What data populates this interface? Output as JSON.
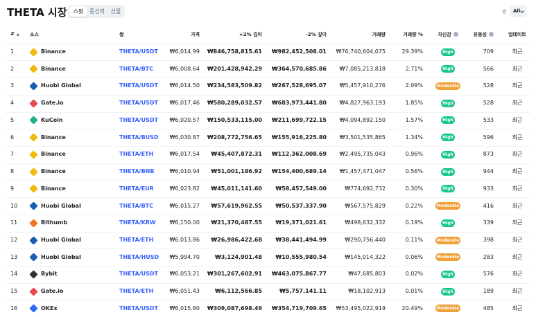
{
  "header": {
    "title": "THETA 시장",
    "tabs": [
      "스팟",
      "종신의",
      "선물"
    ],
    "active_tab": 0,
    "filter_label": "쌍",
    "filter_value": "All"
  },
  "table": {
    "columns": [
      "#",
      "소스",
      "쌍",
      "가격",
      "+2% 깊이",
      "-2% 깊이",
      "거래량",
      "거래량 %",
      "자신감",
      "유동성",
      "업데이트"
    ],
    "sort_indicator": "▲",
    "rows": [
      {
        "rank": 1,
        "exchange": "Binance",
        "logo_color": "#f0b90b",
        "pair": "THETA/USDT",
        "price": "₩6,014.99",
        "depth_plus": "₩846,758,815.61",
        "depth_minus": "₩982,452,508.01",
        "volume": "₩76,740,604,075",
        "volume_pct": "29.39%",
        "confidence": "High",
        "confidence_color": "#16c784",
        "liquidity": 709,
        "updated": "최근"
      },
      {
        "rank": 2,
        "exchange": "Binance",
        "logo_color": "#f0b90b",
        "pair": "THETA/BTC",
        "price": "₩6,008.64",
        "depth_plus": "₩201,428,942.29",
        "depth_minus": "₩364,570,685.86",
        "volume": "₩7,085,213,818",
        "volume_pct": "2.71%",
        "confidence": "High",
        "confidence_color": "#16c784",
        "liquidity": 566,
        "updated": "최근"
      },
      {
        "rank": 3,
        "exchange": "Huobi Global",
        "logo_color": "#1c5bb4",
        "pair": "THETA/USDT",
        "price": "₩6,014.50",
        "depth_plus": "₩234,583,509.82",
        "depth_minus": "₩267,528,695.07",
        "volume": "₩5,457,910,276",
        "volume_pct": "2.09%",
        "confidence": "Moderate",
        "confidence_color": "#f0a13a",
        "liquidity": 528,
        "updated": "최근"
      },
      {
        "rank": 4,
        "exchange": "Gate.io",
        "logo_color": "#e5484d",
        "pair": "THETA/USDT",
        "price": "₩6,017.46",
        "depth_plus": "₩580,289,032.57",
        "depth_minus": "₩683,973,441.80",
        "volume": "₩4,827,963,193",
        "volume_pct": "1.85%",
        "confidence": "High",
        "confidence_color": "#16c784",
        "liquidity": 528,
        "updated": "최근"
      },
      {
        "rank": 5,
        "exchange": "KuCoin",
        "logo_color": "#23af91",
        "pair": "THETA/USDT",
        "price": "₩6,020.57",
        "depth_plus": "₩150,533,115.00",
        "depth_minus": "₩211,699,722.15",
        "volume": "₩4,094,892,150",
        "volume_pct": "1.57%",
        "confidence": "High",
        "confidence_color": "#16c784",
        "liquidity": 533,
        "updated": "최근"
      },
      {
        "rank": 6,
        "exchange": "Binance",
        "logo_color": "#f0b90b",
        "pair": "THETA/BUSD",
        "price": "₩6,030.87",
        "depth_plus": "₩208,772,756.65",
        "depth_minus": "₩155,916,225.80",
        "volume": "₩3,501,535,865",
        "volume_pct": "1.34%",
        "confidence": "High",
        "confidence_color": "#16c784",
        "liquidity": 596,
        "updated": "최근"
      },
      {
        "rank": 7,
        "exchange": "Binance",
        "logo_color": "#f0b90b",
        "pair": "THETA/ETH",
        "price": "₩6,017.54",
        "depth_plus": "₩45,407,872.31",
        "depth_minus": "₩112,362,008.69",
        "volume": "₩2,495,735,043",
        "volume_pct": "0.96%",
        "confidence": "High",
        "confidence_color": "#16c784",
        "liquidity": 873,
        "updated": "최근"
      },
      {
        "rank": 8,
        "exchange": "Binance",
        "logo_color": "#f0b90b",
        "pair": "THETA/BNB",
        "price": "₩6,010.94",
        "depth_plus": "₩51,001,186.92",
        "depth_minus": "₩154,400,689.14",
        "volume": "₩1,457,471,047",
        "volume_pct": "0.56%",
        "confidence": "High",
        "confidence_color": "#16c784",
        "liquidity": 944,
        "updated": "최근"
      },
      {
        "rank": 9,
        "exchange": "Binance",
        "logo_color": "#f0b90b",
        "pair": "THETA/EUR",
        "price": "₩6,023.82",
        "depth_plus": "₩45,011,141.60",
        "depth_minus": "₩58,457,549.00",
        "volume": "₩774,692,732",
        "volume_pct": "0.30%",
        "confidence": "High",
        "confidence_color": "#16c784",
        "liquidity": 933,
        "updated": "최근"
      },
      {
        "rank": 10,
        "exchange": "Huobi Global",
        "logo_color": "#1c5bb4",
        "pair": "THETA/BTC",
        "price": "₩6,015.27",
        "depth_plus": "₩57,619,962.55",
        "depth_minus": "₩50,537,337.90",
        "volume": "₩567,575,829",
        "volume_pct": "0.22%",
        "confidence": "Moderate",
        "confidence_color": "#f0a13a",
        "liquidity": 416,
        "updated": "최근"
      },
      {
        "rank": 11,
        "exchange": "Bithumb",
        "logo_color": "#f37321",
        "pair": "THETA/KRW",
        "price": "₩6,150.00",
        "depth_plus": "₩21,370,487.55",
        "depth_minus": "₩19,371,021.61",
        "volume": "₩498,632,332",
        "volume_pct": "0.19%",
        "confidence": "High",
        "confidence_color": "#16c784",
        "liquidity": 339,
        "updated": "최근"
      },
      {
        "rank": 12,
        "exchange": "Huobi Global",
        "logo_color": "#1c5bb4",
        "pair": "THETA/ETH",
        "price": "₩6,013.86",
        "depth_plus": "₩26,986,422.68",
        "depth_minus": "₩38,441,494.99",
        "volume": "₩290,756,440",
        "volume_pct": "0.11%",
        "confidence": "Moderate",
        "confidence_color": "#f0a13a",
        "liquidity": 398,
        "updated": "최근"
      },
      {
        "rank": 13,
        "exchange": "Huobi Global",
        "logo_color": "#1c5bb4",
        "pair": "THETA/HUSD",
        "price": "₩5,994.70",
        "depth_plus": "₩3,124,901.48",
        "depth_minus": "₩10,555,980.54",
        "volume": "₩145,014,322",
        "volume_pct": "0.06%",
        "confidence": "Moderate",
        "confidence_color": "#f0a13a",
        "liquidity": 283,
        "updated": "최근"
      },
      {
        "rank": 14,
        "exchange": "Bybit",
        "logo_color": "#333333",
        "pair": "THETA/USDT",
        "price": "₩6,053.21",
        "depth_plus": "₩301,267,602.91",
        "depth_minus": "₩463,075,867.77",
        "volume": "₩47,685,803",
        "volume_pct": "0.02%",
        "confidence": "High",
        "confidence_color": "#16c784",
        "liquidity": 576,
        "updated": "최근"
      },
      {
        "rank": 15,
        "exchange": "Gate.io",
        "logo_color": "#e5484d",
        "pair": "THETA/ETH",
        "price": "₩6,051.43",
        "depth_plus": "₩6,112,566.85",
        "depth_minus": "₩5,757,141.11",
        "volume": "₩18,102,913",
        "volume_pct": "0.01%",
        "confidence": "High",
        "confidence_color": "#16c784",
        "liquidity": 189,
        "updated": "최근"
      },
      {
        "rank": 16,
        "exchange": "OKEx",
        "logo_color": "#2a6cf6",
        "pair": "THETA/USDT",
        "price": "₩6,015.80",
        "depth_plus": "₩309,087,698.49",
        "depth_minus": "₩354,719,709.65",
        "volume": "₩53,495,022,919",
        "volume_pct": "20.49%",
        "confidence": "Moderate",
        "confidence_color": "#f0a13a",
        "liquidity": 485,
        "updated": "최근"
      }
    ]
  }
}
